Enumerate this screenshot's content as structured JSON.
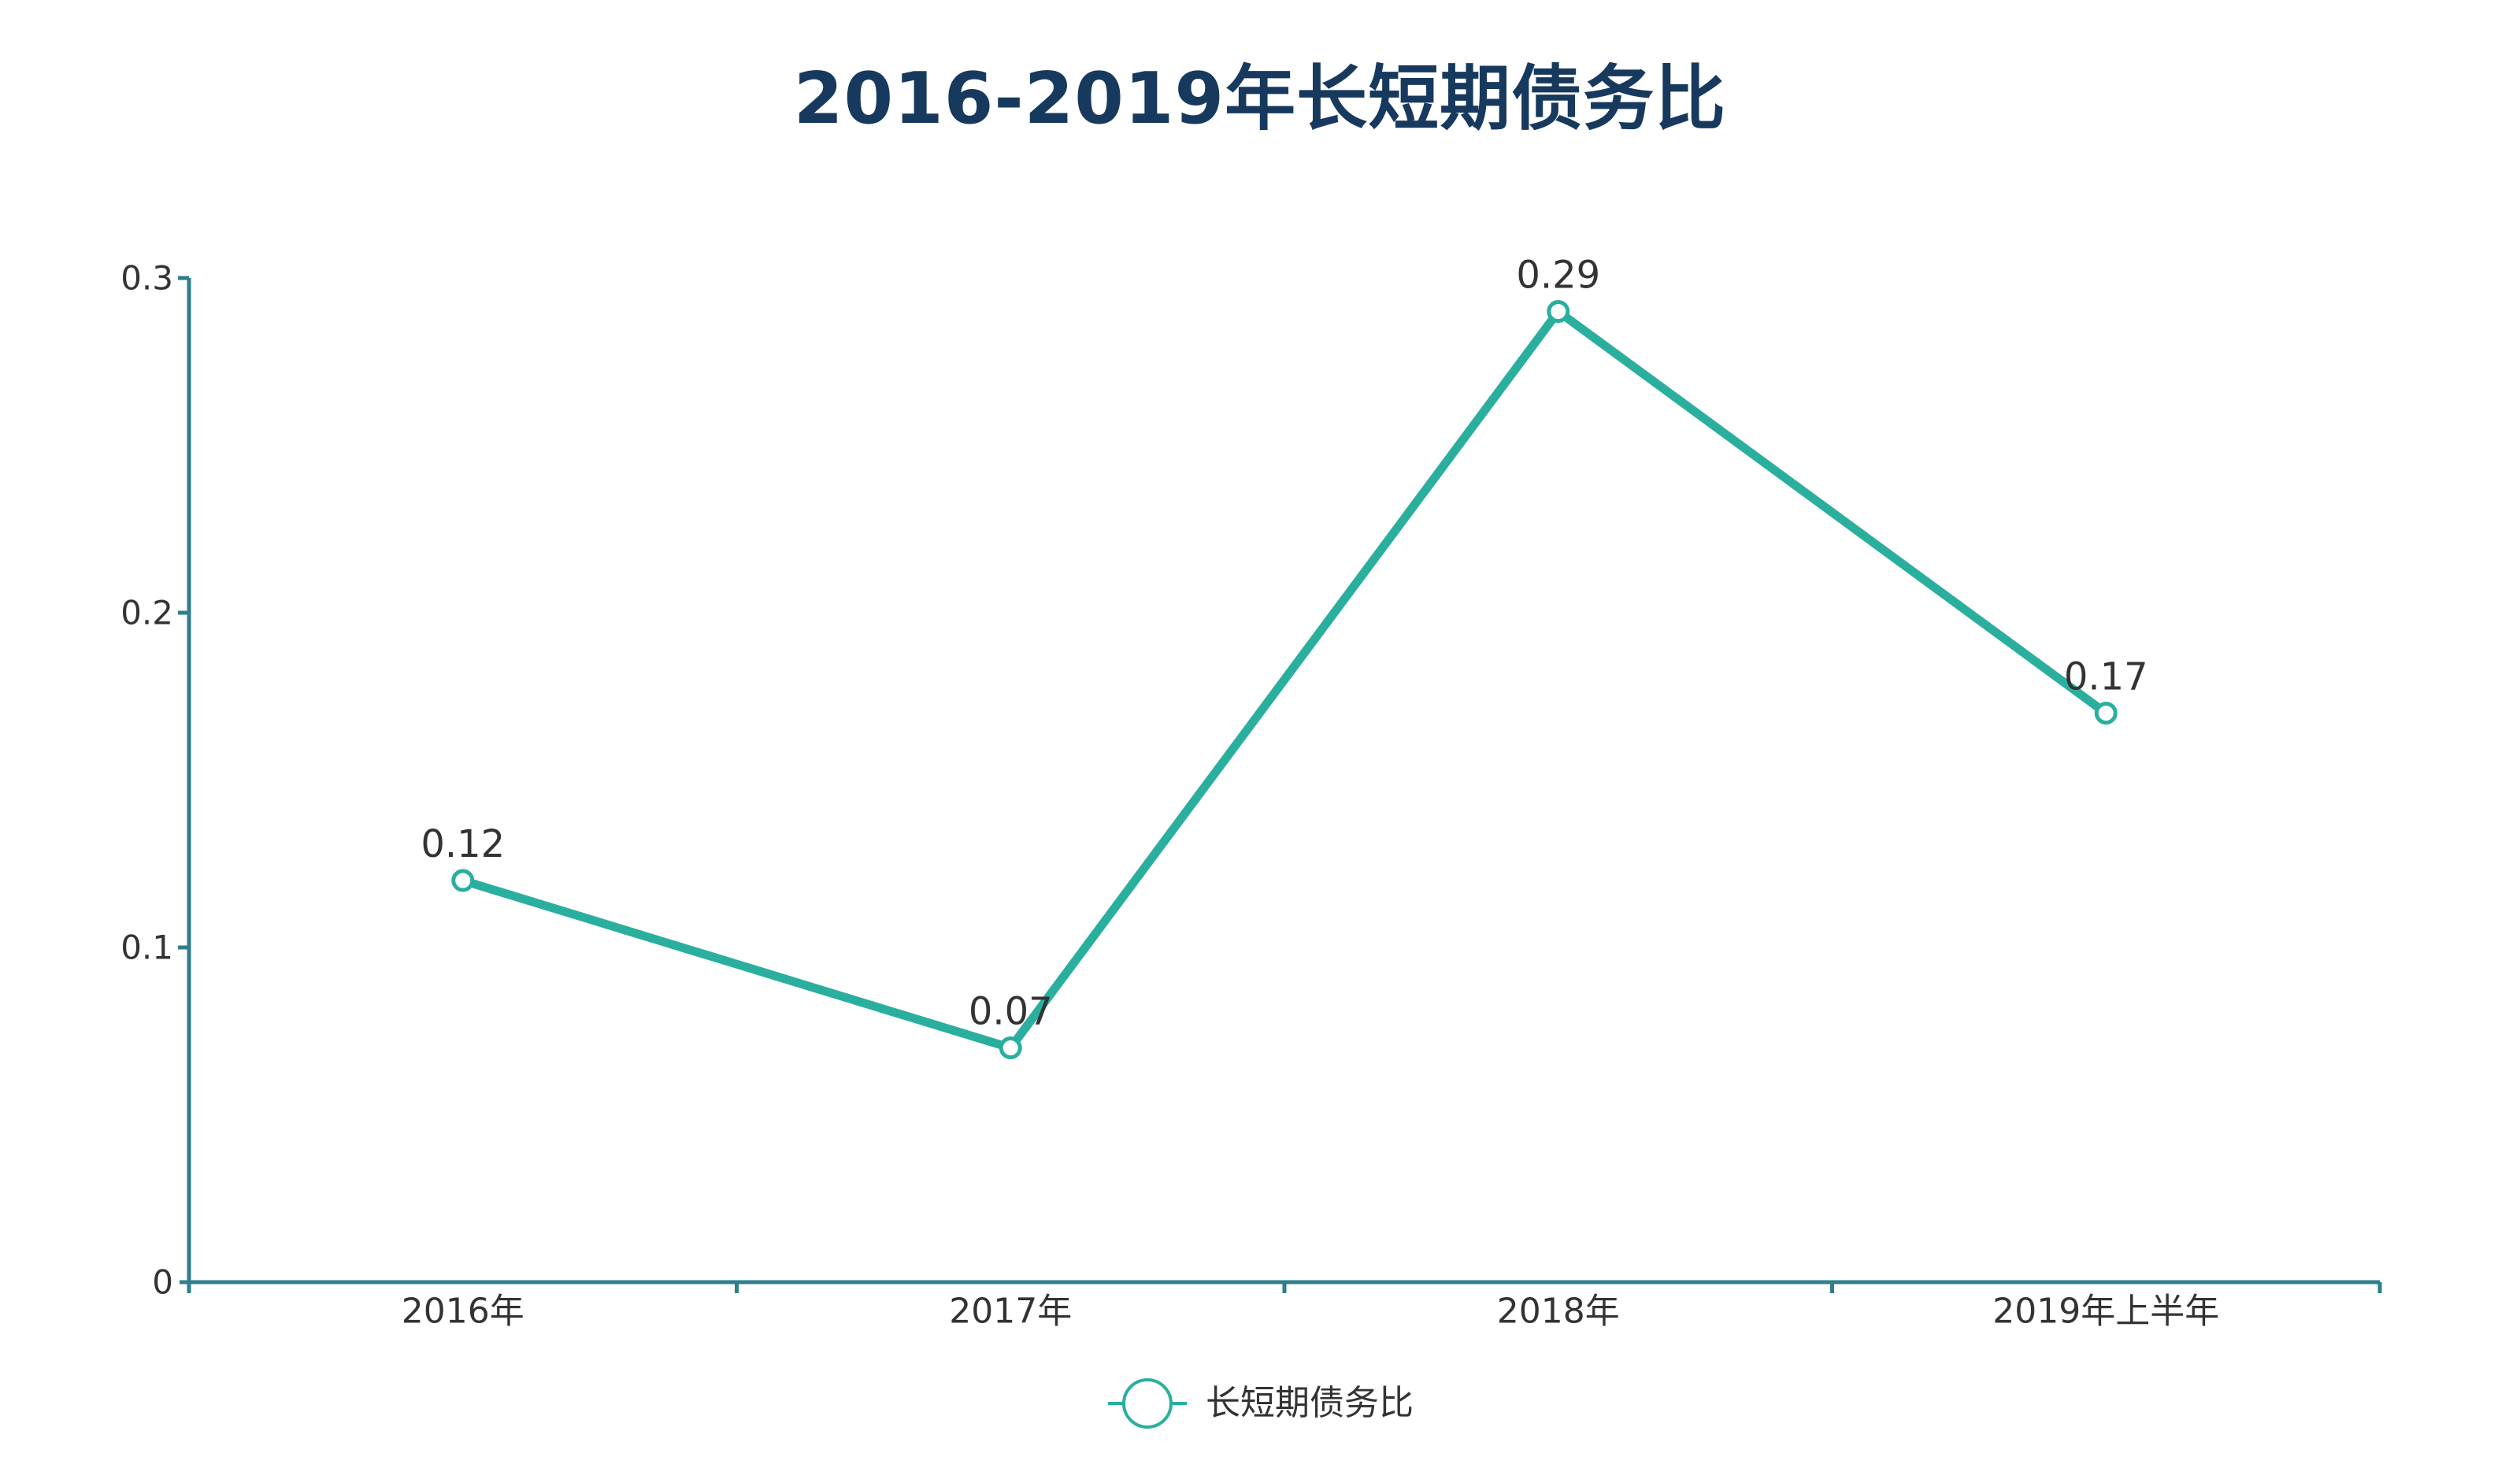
{
  "title": {
    "text": "2016-2019年长短期债务比",
    "color": "#17395e"
  },
  "legend": {
    "label": "长短期债务比",
    "position": "bottom"
  },
  "colors": {
    "line": "#2aaf9f",
    "marker_fill": "#ffffff",
    "axis": "#2e7f8e",
    "tick_label": "#333333",
    "data_label": "#333333",
    "background": "#ffffff"
  },
  "chart_data": {
    "type": "line",
    "title": "2016-2019年长短期债务比",
    "categories": [
      "2016年",
      "2017年",
      "2018年",
      "2019年上半年"
    ],
    "series": [
      {
        "name": "长短期债务比",
        "values": [
          0.12,
          0.07,
          0.29,
          0.17
        ],
        "labels": [
          "0.12",
          "0.07",
          "0.29",
          "0.17"
        ],
        "color": "#2aaf9f",
        "marker": "hollow-circle"
      }
    ],
    "xlabel": "",
    "ylabel": "",
    "ylim": [
      0,
      0.3
    ],
    "yticks": [
      0,
      0.1,
      0.2,
      0.3
    ],
    "ytick_labels": [
      "0",
      "0.1",
      "0.2",
      "0.3"
    ],
    "grid": false,
    "legend_position": "bottom",
    "data_labels_shown": true
  }
}
